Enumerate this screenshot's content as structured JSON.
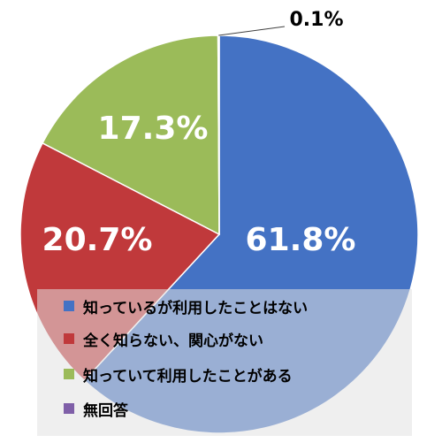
{
  "chart_data": {
    "type": "pie",
    "title": "",
    "categories": [
      "知っているが利用したことはない",
      "全く知らない、関心がない",
      "知っていて利用したことがある",
      "無回答"
    ],
    "values": [
      61.8,
      20.7,
      17.3,
      0.1
    ],
    "labels": [
      "61.8%",
      "20.7%",
      "17.3%",
      "0.1%"
    ],
    "colors": [
      "#4472c4",
      "#c0393b",
      "#9bbb59",
      "#7f5fa8"
    ],
    "start_angle_deg": 0,
    "direction": "clockwise",
    "legend": "bottom"
  }
}
